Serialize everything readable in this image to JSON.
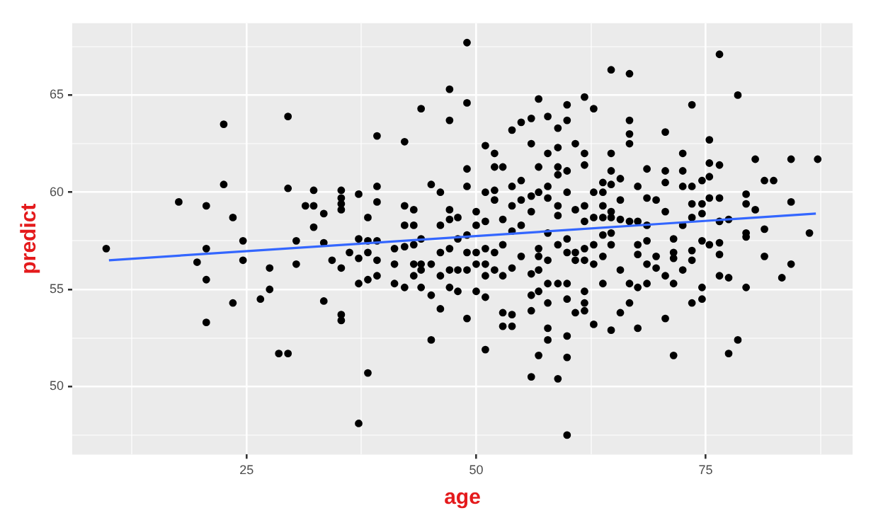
{
  "chart_data": {
    "type": "scatter",
    "xlabel": "age",
    "ylabel": "predict",
    "xlim": [
      6,
      91
    ],
    "ylim": [
      46.5,
      68.7
    ],
    "xticks": [
      {
        "value": 12.5,
        "label": null
      },
      25,
      {
        "value": 37.5,
        "label": null
      },
      50,
      {
        "value": 62.5,
        "label": null
      },
      75,
      {
        "value": 87.5,
        "label": null
      }
    ],
    "yticks": [
      {
        "value": 47.5,
        "label": null
      },
      50,
      {
        "value": 52.5,
        "label": null
      },
      55,
      {
        "value": 57.5,
        "label": null
      },
      60,
      {
        "value": 62.5,
        "label": null
      },
      65,
      {
        "value": 67.5,
        "label": null
      }
    ],
    "grid": true,
    "legend": false,
    "series": [
      {
        "marker": "circle",
        "color": "#000000",
        "x": [
          9.7,
          17.6,
          22.5,
          22.5,
          20.6,
          23.5,
          20.6,
          19.6,
          20.6,
          20.6,
          23.5,
          24.6,
          24.6,
          26.5,
          27.5,
          27.5,
          28.5,
          29.5,
          29.5,
          29.5,
          30.4,
          30.4,
          31.4,
          32.3,
          32.3,
          32.3,
          33.4,
          33.4,
          33.4,
          34.3,
          35.3,
          35.3,
          35.3,
          35.3,
          35.3,
          35.3,
          35.3,
          36.2,
          37.2,
          38.2,
          37.2,
          37.2,
          37.2,
          37.2,
          38.2,
          38.2,
          38.2,
          38.2,
          39.2,
          39.2,
          39.2,
          39.2,
          39.2,
          39.2,
          41.1,
          41.1,
          41.1,
          42.2,
          42.2,
          42.2,
          42.2,
          42.2,
          43.2,
          43.2,
          43.2,
          43.2,
          43.2,
          44.0,
          44.0,
          44.0,
          44.0,
          44.0,
          45.1,
          45.1,
          45.1,
          45.1,
          46.1,
          46.1,
          46.1,
          46.1,
          46.1,
          47.1,
          47.1,
          47.1,
          47.1,
          47.1,
          47.1,
          47.1,
          48.0,
          48.0,
          48.0,
          48.0,
          49.0,
          49.0,
          49.0,
          49.0,
          49.0,
          49.0,
          49.0,
          49.0,
          50.0,
          50.0,
          50.0,
          50.0,
          50.0,
          51.0,
          51.0,
          51.0,
          51.0,
          51.0,
          51.0,
          51.0,
          51.0,
          52.0,
          52.0,
          52.0,
          52.0,
          52.0,
          52.0,
          52.9,
          52.9,
          52.9,
          52.9,
          52.9,
          52.9,
          53.9,
          53.9,
          53.9,
          53.9,
          53.9,
          53.9,
          53.9,
          54.9,
          54.9,
          54.9,
          54.9,
          54.9,
          56.0,
          56.0,
          56.0,
          56.0,
          56.0,
          56.0,
          56.0,
          56.0,
          56.8,
          56.8,
          56.8,
          56.8,
          56.8,
          56.8,
          56.8,
          56.8,
          57.8,
          57.8,
          57.8,
          57.8,
          57.8,
          57.8,
          57.8,
          57.8,
          57.8,
          57.8,
          58.9,
          58.9,
          58.9,
          58.9,
          58.9,
          58.9,
          58.9,
          58.9,
          58.9,
          59.9,
          59.9,
          59.9,
          59.9,
          59.9,
          59.9,
          59.9,
          59.9,
          59.9,
          59.9,
          59.9,
          60.8,
          60.8,
          60.8,
          60.8,
          60.8,
          61.8,
          61.8,
          61.8,
          61.8,
          61.8,
          61.8,
          61.8,
          61.8,
          61.8,
          61.8,
          62.8,
          62.8,
          62.8,
          62.8,
          62.8,
          62.8,
          63.8,
          63.8,
          63.8,
          63.8,
          63.8,
          63.8,
          63.8,
          64.7,
          64.7,
          64.7,
          64.7,
          64.7,
          64.7,
          64.7,
          64.7,
          64.7,
          65.7,
          65.7,
          65.7,
          65.7,
          65.7,
          66.7,
          66.7,
          66.7,
          66.7,
          66.7,
          66.7,
          66.7,
          67.6,
          67.6,
          67.6,
          67.6,
          67.6,
          67.6,
          68.6,
          68.6,
          68.6,
          68.6,
          68.6,
          68.6,
          69.6,
          69.6,
          69.6,
          70.6,
          70.6,
          70.6,
          70.6,
          70.6,
          70.6,
          71.5,
          71.5,
          71.5,
          71.5,
          71.5,
          72.5,
          72.5,
          72.5,
          72.5,
          72.5,
          73.5,
          73.5,
          73.5,
          73.5,
          73.5,
          73.5,
          73.5,
          74.6,
          74.6,
          74.6,
          74.6,
          74.6,
          74.6,
          75.4,
          75.4,
          75.4,
          75.4,
          75.4,
          76.5,
          76.5,
          76.5,
          76.5,
          76.5,
          76.5,
          76.5,
          77.5,
          77.5,
          77.5,
          78.5,
          78.5,
          79.4,
          79.4,
          79.4,
          79.4,
          79.4,
          80.4,
          80.4,
          81.4,
          81.4,
          81.4,
          82.4,
          83.3,
          84.3,
          84.3,
          84.3,
          86.3,
          87.2
        ],
        "values": [
          57.1,
          59.5,
          63.5,
          60.4,
          59.3,
          58.7,
          57.1,
          56.4,
          55.5,
          53.3,
          54.3,
          57.5,
          56.5,
          54.5,
          56.1,
          55.0,
          51.7,
          51.7,
          63.9,
          60.2,
          57.5,
          56.3,
          59.3,
          60.1,
          59.3,
          58.2,
          58.9,
          57.4,
          54.4,
          56.5,
          60.1,
          59.7,
          59.4,
          59.1,
          56.1,
          53.7,
          53.4,
          56.9,
          48.1,
          50.7,
          59.9,
          57.6,
          56.6,
          55.3,
          58.7,
          57.5,
          56.9,
          55.5,
          62.9,
          60.3,
          59.5,
          57.5,
          56.5,
          55.7,
          57.1,
          56.3,
          55.3,
          62.6,
          59.3,
          58.3,
          57.2,
          55.1,
          59.1,
          58.3,
          57.3,
          56.3,
          55.7,
          64.3,
          57.6,
          56.3,
          56.0,
          55.1,
          60.4,
          56.3,
          54.7,
          52.4,
          60.0,
          58.3,
          56.9,
          55.7,
          54.0,
          65.3,
          63.7,
          59.1,
          58.6,
          57.1,
          56.0,
          55.1,
          58.7,
          57.6,
          56.0,
          54.9,
          67.7,
          64.6,
          61.2,
          60.3,
          57.8,
          56.9,
          56.0,
          53.5,
          59.0,
          58.3,
          56.9,
          56.3,
          54.9,
          62.4,
          60.0,
          58.5,
          57.1,
          56.3,
          55.7,
          54.6,
          51.9,
          62.0,
          61.3,
          60.1,
          59.6,
          56.9,
          56.0,
          61.3,
          58.6,
          57.3,
          55.7,
          53.8,
          53.1,
          63.2,
          60.3,
          59.3,
          58.0,
          56.1,
          53.7,
          53.1,
          63.6,
          60.6,
          59.6,
          58.3,
          56.7,
          63.8,
          62.5,
          59.8,
          59.0,
          55.8,
          54.7,
          53.9,
          50.5,
          64.8,
          61.3,
          60.0,
          57.1,
          56.7,
          56.0,
          54.9,
          51.6,
          63.9,
          62.0,
          60.3,
          59.7,
          57.9,
          56.5,
          55.3,
          54.3,
          53.0,
          52.4,
          63.3,
          62.3,
          61.3,
          60.9,
          59.3,
          58.8,
          57.3,
          55.3,
          50.4,
          64.5,
          63.7,
          61.1,
          60.0,
          57.6,
          56.9,
          55.3,
          54.5,
          52.6,
          51.5,
          47.5,
          62.5,
          59.1,
          56.9,
          56.5,
          53.8,
          64.9,
          62.0,
          61.4,
          59.3,
          58.5,
          57.1,
          56.5,
          54.9,
          54.3,
          53.9,
          64.3,
          60.0,
          58.7,
          57.3,
          56.3,
          53.2,
          60.5,
          60.0,
          59.3,
          58.7,
          57.8,
          56.7,
          55.3,
          66.3,
          62.0,
          61.1,
          60.4,
          59.0,
          58.7,
          57.9,
          57.3,
          52.9,
          60.7,
          59.6,
          58.6,
          56.0,
          53.8,
          66.1,
          63.7,
          63.0,
          62.5,
          58.5,
          55.3,
          54.3,
          60.3,
          58.5,
          57.3,
          56.8,
          55.1,
          53.0,
          61.2,
          59.7,
          58.3,
          57.5,
          56.3,
          55.3,
          59.6,
          56.7,
          56.1,
          63.1,
          61.1,
          60.5,
          59.0,
          55.7,
          53.5,
          57.6,
          56.9,
          56.6,
          55.3,
          51.6,
          62.0,
          61.1,
          60.3,
          58.3,
          56.0,
          64.5,
          60.3,
          59.4,
          58.7,
          57.0,
          56.5,
          54.3,
          60.6,
          59.4,
          58.9,
          57.5,
          55.1,
          54.5,
          62.7,
          61.5,
          60.8,
          59.7,
          57.3,
          67.1,
          61.4,
          59.7,
          58.5,
          57.4,
          56.8,
          55.7,
          58.6,
          55.6,
          51.7,
          65.0,
          52.4,
          59.9,
          59.4,
          57.9,
          57.7,
          55.1,
          61.7,
          59.1,
          60.6,
          58.1,
          56.7,
          60.6,
          55.6,
          61.7,
          59.5,
          56.3,
          57.9,
          61.7
        ]
      },
      {
        "type": "line",
        "color": "#3366ff",
        "x": [
          10,
          87
        ],
        "values": [
          56.5,
          58.9
        ]
      }
    ]
  }
}
